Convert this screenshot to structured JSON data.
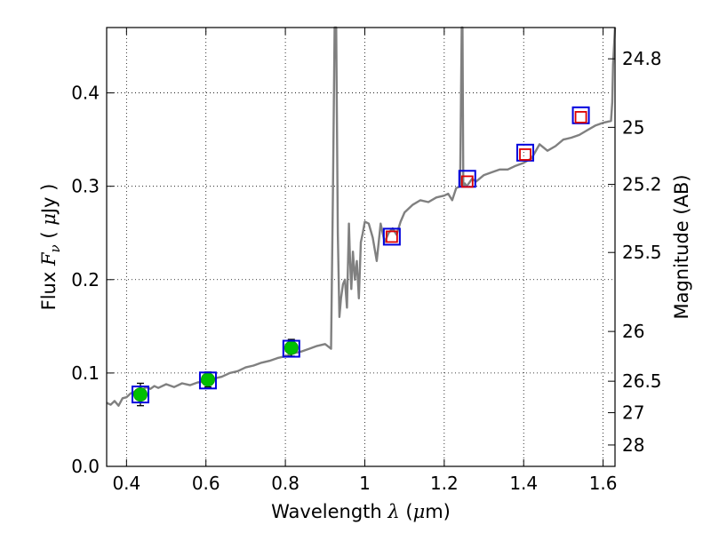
{
  "chart_data": {
    "type": "line",
    "title": "",
    "xlabel": {
      "prefix": "Wavelength  ",
      "symbol": "λ",
      "unit_open": " (",
      "unit_symbol": "μ",
      "unit_rest": "m)"
    },
    "ylabel": {
      "prefix": "Flux  ",
      "symbol": "F",
      "subscript": "ν",
      "unit_open": "  ( ",
      "unit_symbol": "μ",
      "unit_rest": "Jy )"
    },
    "y2label": "Magnitude (AB)",
    "xlim": [
      0.35,
      1.63
    ],
    "ylim": [
      0.0,
      0.47
    ],
    "grid": true,
    "x_ticks": [
      {
        "value": 0.4,
        "label": "0.4"
      },
      {
        "value": 0.6,
        "label": "0.6"
      },
      {
        "value": 0.8,
        "label": "0.8"
      },
      {
        "value": 1.0,
        "label": "1"
      },
      {
        "value": 1.2,
        "label": "1.2"
      },
      {
        "value": 1.4,
        "label": "1.4"
      },
      {
        "value": 1.6,
        "label": "1.6"
      }
    ],
    "y_ticks": [
      {
        "value": 0.0,
        "label": "0.0"
      },
      {
        "value": 0.1,
        "label": "0.1"
      },
      {
        "value": 0.2,
        "label": "0.2"
      },
      {
        "value": 0.3,
        "label": "0.3"
      },
      {
        "value": 0.4,
        "label": "0.4"
      }
    ],
    "mag_ticks": [
      {
        "flux": 0.4365,
        "label": "24.8"
      },
      {
        "flux": 0.3631,
        "label": "25"
      },
      {
        "flux": 0.302,
        "label": "25.2"
      },
      {
        "flux": 0.2291,
        "label": "25.5"
      },
      {
        "flux": 0.1445,
        "label": "26"
      },
      {
        "flux": 0.0912,
        "label": "26.5"
      },
      {
        "flux": 0.0575,
        "label": "27"
      },
      {
        "flux": 0.0229,
        "label": "28"
      }
    ],
    "series": [
      {
        "kind": "model_spectrum",
        "color": "#808080",
        "x": [
          0.35,
          0.36,
          0.37,
          0.38,
          0.39,
          0.4,
          0.41,
          0.42,
          0.43,
          0.44,
          0.45,
          0.46,
          0.47,
          0.48,
          0.5,
          0.52,
          0.54,
          0.56,
          0.58,
          0.6,
          0.62,
          0.64,
          0.66,
          0.68,
          0.7,
          0.72,
          0.74,
          0.76,
          0.78,
          0.8,
          0.82,
          0.84,
          0.86,
          0.88,
          0.9,
          0.915,
          0.92,
          0.924,
          0.928,
          0.932,
          0.936,
          0.94,
          0.945,
          0.95,
          0.955,
          0.96,
          0.963,
          0.966,
          0.97,
          0.975,
          0.98,
          0.985,
          0.99,
          0.995,
          1.0,
          1.01,
          1.02,
          1.03,
          1.04,
          1.05,
          1.06,
          1.07,
          1.08,
          1.09,
          1.1,
          1.12,
          1.14,
          1.16,
          1.18,
          1.2,
          1.21,
          1.22,
          1.23,
          1.24,
          1.244,
          1.246,
          1.248,
          1.252,
          1.256,
          1.26,
          1.27,
          1.28,
          1.3,
          1.32,
          1.34,
          1.36,
          1.38,
          1.4,
          1.42,
          1.44,
          1.46,
          1.48,
          1.5,
          1.52,
          1.54,
          1.56,
          1.58,
          1.6,
          1.61,
          1.62,
          1.623,
          1.625,
          1.63
        ],
        "y": [
          0.068,
          0.066,
          0.07,
          0.065,
          0.073,
          0.074,
          0.078,
          0.08,
          0.083,
          0.082,
          0.085,
          0.083,
          0.086,
          0.084,
          0.088,
          0.085,
          0.089,
          0.087,
          0.09,
          0.091,
          0.094,
          0.096,
          0.1,
          0.102,
          0.106,
          0.108,
          0.111,
          0.113,
          0.116,
          0.118,
          0.121,
          0.123,
          0.126,
          0.129,
          0.131,
          0.126,
          0.3,
          0.47,
          0.47,
          0.25,
          0.16,
          0.18,
          0.195,
          0.2,
          0.17,
          0.26,
          0.22,
          0.19,
          0.23,
          0.2,
          0.22,
          0.18,
          0.24,
          0.25,
          0.262,
          0.26,
          0.245,
          0.22,
          0.26,
          0.24,
          0.25,
          0.255,
          0.248,
          0.262,
          0.272,
          0.28,
          0.285,
          0.283,
          0.288,
          0.29,
          0.292,
          0.285,
          0.298,
          0.3,
          0.47,
          0.47,
          0.3,
          0.303,
          0.3,
          0.302,
          0.308,
          0.305,
          0.312,
          0.315,
          0.318,
          0.318,
          0.322,
          0.325,
          0.33,
          0.345,
          0.338,
          0.343,
          0.35,
          0.352,
          0.355,
          0.36,
          0.365,
          0.368,
          0.369,
          0.37,
          0.39,
          0.43,
          0.47
        ]
      },
      {
        "kind": "observed_points",
        "color": "#00c000",
        "edge": "#00a000",
        "x": [
          0.435,
          0.605,
          0.815
        ],
        "y": [
          0.077,
          0.093,
          0.127
        ],
        "yerr": [
          0.012,
          0.008,
          0.009
        ]
      },
      {
        "kind": "model_bands_outer",
        "color": "#0000dd",
        "x": [
          0.435,
          0.605,
          0.815,
          1.068,
          1.258,
          1.404,
          1.544
        ],
        "y": [
          0.077,
          0.092,
          0.126,
          0.246,
          0.308,
          0.336,
          0.376
        ]
      },
      {
        "kind": "model_bands_inner",
        "color": "#dd0000",
        "x": [
          1.068,
          1.258,
          1.404,
          1.544
        ],
        "y": [
          0.246,
          0.305,
          0.334,
          0.374
        ]
      }
    ]
  }
}
